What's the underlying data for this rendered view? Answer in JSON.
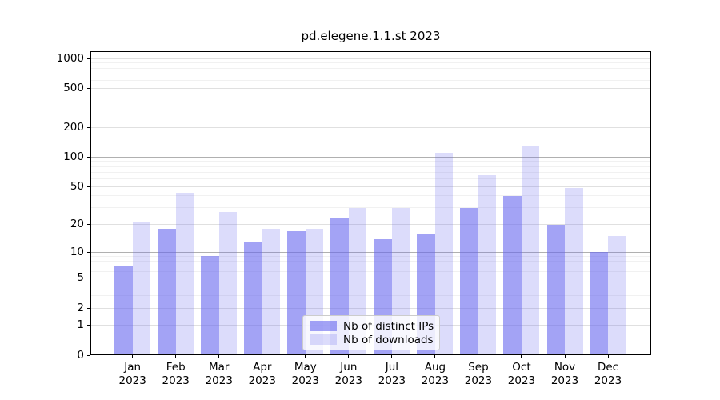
{
  "chart_data": {
    "type": "bar",
    "title": "pd.elegene.1.1.st 2023",
    "categories": [
      "Jan",
      "Feb",
      "Mar",
      "Apr",
      "May",
      "Jun",
      "Jul",
      "Aug",
      "Sep",
      "Oct",
      "Nov",
      "Dec"
    ],
    "year": "2023",
    "series": [
      {
        "name": "Nb of distinct IPs",
        "alpha": 0.6,
        "values": [
          7,
          18,
          9,
          13,
          17,
          23,
          14,
          16,
          30,
          40,
          20,
          10
        ]
      },
      {
        "name": "Nb of downloads",
        "alpha": 0.23,
        "values": [
          21,
          43,
          27,
          18,
          18,
          30,
          30,
          110,
          65,
          128,
          48,
          15
        ]
      }
    ],
    "bar_color": "#6666ee",
    "yscale": "log1p",
    "ylabel": "",
    "xlabel": "",
    "y_ticks": [
      0,
      1,
      2,
      5,
      10,
      20,
      50,
      100,
      200,
      500,
      1000
    ],
    "y_minor_ticks": [
      3,
      4,
      6,
      7,
      8,
      9,
      30,
      40,
      60,
      70,
      80,
      90,
      300,
      400,
      600,
      700,
      800,
      900
    ],
    "ylim": [
      0,
      1250
    ],
    "grid": "horizontal",
    "legend_position": "bottom-center-inside"
  }
}
